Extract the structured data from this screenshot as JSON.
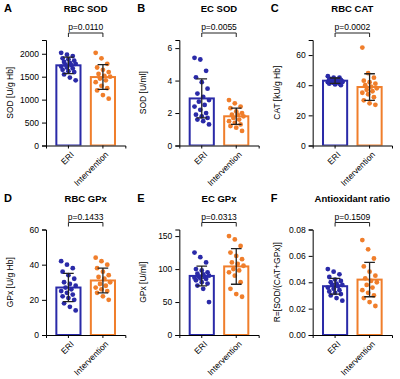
{
  "chart_data": [
    {
      "type": "bar",
      "panel_label": "A",
      "title": "RBC SOD",
      "y_label": "SOD [U/g Hb]",
      "categories": [
        "ERI",
        "Intervention"
      ],
      "values": [
        1748,
        1492
      ],
      "errors": [
        180,
        270
      ],
      "points": [
        [
          2020,
          1980,
          1950,
          1900,
          1880,
          1850,
          1820,
          1800,
          1780,
          1760,
          1750,
          1720,
          1700,
          1680,
          1650,
          1620,
          1600,
          1550,
          1480,
          1420
        ],
        [
          2020,
          1900,
          1780,
          1700,
          1650,
          1600,
          1560,
          1520,
          1500,
          1460,
          1420,
          1380,
          1300,
          1250,
          1200,
          1100,
          1020
        ]
      ],
      "colors": [
        "#2a2aa8",
        "#f07e2b"
      ],
      "annotation": "p=0.0110",
      "ylim": [
        0,
        2300
      ],
      "yticks": [
        0,
        500,
        1000,
        1500,
        2000
      ]
    },
    {
      "type": "bar",
      "panel_label": "B",
      "title": "EC SOD",
      "y_label": "SOD [U/ml]",
      "categories": [
        "ERI",
        "Intervention"
      ],
      "values": [
        2.9,
        1.8
      ],
      "errors": [
        1.2,
        0.5
      ],
      "points": [
        [
          5.4,
          5.3,
          4.6,
          4.2,
          3.9,
          3.5,
          3.2,
          3.0,
          2.8,
          2.7,
          2.5,
          2.4,
          2.2,
          2.0,
          1.9,
          1.8,
          1.7,
          1.6,
          1.5,
          1.3
        ],
        [
          2.8,
          2.6,
          2.4,
          2.3,
          2.1,
          2.0,
          1.9,
          1.9,
          1.8,
          1.7,
          1.6,
          1.5,
          1.4,
          1.3,
          1.2,
          1.1,
          0.9
        ]
      ],
      "colors": [
        "#2a2aa8",
        "#f07e2b"
      ],
      "annotation": "p=0.0055",
      "ylim": [
        0,
        6.5
      ],
      "yticks": [
        0,
        2,
        4,
        6
      ]
    },
    {
      "type": "bar",
      "panel_label": "C",
      "title": "RBC CAT",
      "y_label": "CAT [kU/g Hb]",
      "categories": [
        "ERI",
        "Intervention"
      ],
      "values": [
        43,
        38.8
      ],
      "errors": [
        1.8,
        8.8
      ],
      "points": [
        [
          46,
          45,
          45,
          44,
          44,
          43.5,
          43,
          43,
          42.5,
          42,
          42,
          42,
          41.5,
          41,
          41,
          40.5,
          40,
          44,
          43,
          42
        ],
        [
          65,
          48,
          45,
          43,
          42,
          41,
          40,
          39,
          38,
          37,
          36,
          35,
          34,
          32,
          30,
          28,
          27
        ]
      ],
      "colors": [
        "#2a2aa8",
        "#f07e2b"
      ],
      "annotation": "p=0.0002",
      "ylim": [
        0,
        70
      ],
      "yticks": [
        0,
        20,
        40,
        60
      ]
    },
    {
      "type": "bar",
      "panel_label": "D",
      "title": "RBC GPx",
      "y_label": "GPx [U/g Hb]",
      "categories": [
        "ERI",
        "Intervention"
      ],
      "values": [
        27,
        31
      ],
      "errors": [
        8,
        7
      ],
      "points": [
        [
          42,
          40,
          38,
          36,
          34,
          32,
          30,
          29,
          28,
          27,
          26,
          25,
          24,
          23,
          22,
          21,
          20,
          18,
          16,
          14
        ],
        [
          44,
          42,
          40,
          38,
          36,
          34,
          33,
          32,
          30,
          29,
          28,
          27,
          26,
          25,
          24,
          22,
          20
        ]
      ],
      "colors": [
        "#2a2aa8",
        "#f07e2b"
      ],
      "annotation": "p=0.1433",
      "ylim": [
        0,
        60
      ],
      "yticks": [
        0,
        20,
        40,
        60
      ]
    },
    {
      "type": "bar",
      "panel_label": "E",
      "title": "EC GPx",
      "y_label": "GPx [U/ml]",
      "categories": [
        "ERI",
        "Intervention"
      ],
      "values": [
        89.6,
        104
      ],
      "errors": [
        15,
        27
      ],
      "points": [
        [
          125,
          118,
          110,
          100,
          98,
          95,
          93,
          92,
          90,
          89,
          88,
          87,
          86,
          85,
          83,
          80,
          78,
          75,
          70,
          50
        ],
        [
          150,
          145,
          135,
          125,
          120,
          115,
          110,
          108,
          105,
          100,
          98,
          95,
          90,
          80,
          70,
          62,
          58
        ]
      ],
      "colors": [
        "#2a2aa8",
        "#f07e2b"
      ],
      "annotation": "p=0.0313",
      "ylim": [
        0,
        160
      ],
      "yticks": [
        0,
        50,
        100,
        150
      ]
    },
    {
      "type": "bar",
      "panel_label": "F",
      "title": "Antioxidant ratio",
      "y_label": "R=[SOD/(CAT+GPx)]",
      "categories": [
        "ERI",
        "Intervention"
      ],
      "values": [
        0.037,
        0.042
      ],
      "errors": [
        0.006,
        0.013
      ],
      "points": [
        [
          0.05,
          0.048,
          0.046,
          0.044,
          0.042,
          0.041,
          0.04,
          0.039,
          0.038,
          0.038,
          0.037,
          0.036,
          0.035,
          0.034,
          0.033,
          0.032,
          0.031,
          0.03,
          0.028,
          0.026
        ],
        [
          0.072,
          0.065,
          0.058,
          0.052,
          0.048,
          0.045,
          0.043,
          0.041,
          0.04,
          0.038,
          0.036,
          0.034,
          0.032,
          0.03,
          0.028,
          0.025,
          0.022
        ]
      ],
      "colors": [
        "#2a2aa8",
        "#f07e2b"
      ],
      "annotation": "p=0.1509",
      "ylim": [
        0,
        0.08
      ],
      "yticks": [
        {
          "value": 0,
          "label": "0.00"
        },
        {
          "value": 0.02,
          "label": "0.02"
        },
        {
          "value": 0.04,
          "label": "0.04"
        },
        {
          "value": 0.06,
          "label": "0.06"
        },
        {
          "value": 0.08,
          "label": "0.08"
        }
      ]
    }
  ]
}
